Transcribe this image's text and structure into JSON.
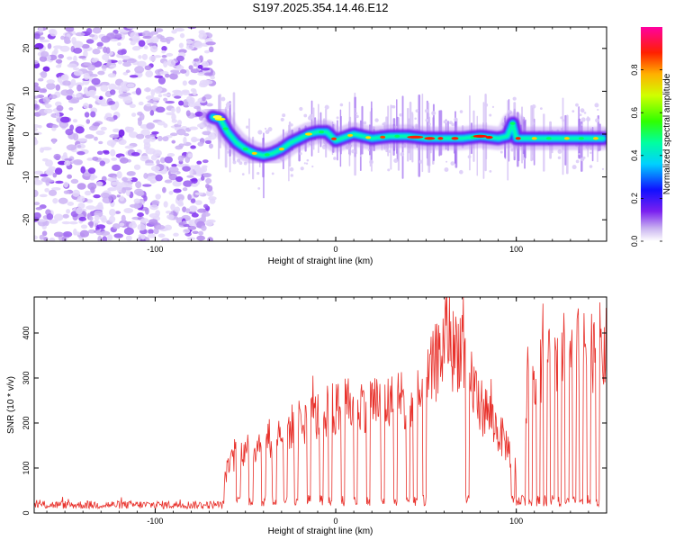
{
  "title": "S197.2025.354.14.46.E12",
  "colors": {
    "snr_line": "#e8302a",
    "background": "#ffffff",
    "axis": "#000000"
  },
  "chart_data": [
    {
      "type": "heatmap",
      "name": "spectrogram",
      "xlabel": "Height of straight line (km)",
      "ylabel": "Frequency (Hz)",
      "xlim": [
        -167,
        150
      ],
      "ylim": [
        -25,
        25
      ],
      "xticks": [
        -100,
        0,
        100
      ],
      "xtick_labels": [
        "-100",
        "0",
        "100"
      ],
      "yticks": [
        -20,
        -10,
        0,
        10,
        20
      ],
      "ytick_labels": [
        "-20",
        "-10",
        "0",
        "10",
        "20"
      ],
      "noise_region_x": [
        -167,
        -68
      ],
      "ridge": {
        "x": [
          -68,
          -64,
          -60,
          -55,
          -50,
          -45,
          -40,
          -35,
          -30,
          -25,
          -20,
          -15,
          -10,
          -5,
          0,
          10,
          20,
          30,
          40,
          50,
          60,
          70,
          80,
          90,
          95,
          98,
          100,
          110,
          120,
          130,
          140,
          148
        ],
        "freq": [
          4,
          3.5,
          0.5,
          -2,
          -3.5,
          -4.5,
          -5,
          -4.5,
          -3.5,
          -2,
          -1,
          0,
          0.5,
          0.5,
          -1.5,
          0,
          -1,
          -0.5,
          -0.5,
          -1,
          -1,
          -1,
          -0.5,
          -1,
          -0.5,
          2.5,
          -1,
          -1,
          -1,
          -1,
          -1,
          -1
        ]
      },
      "colorbar": {
        "label": "Normalized spectral amplitude",
        "range": [
          0,
          1
        ],
        "ticks": [
          0.0,
          0.2,
          0.4,
          0.6,
          0.8
        ],
        "tick_labels": [
          "0.0",
          "0.2",
          "0.4",
          "0.6",
          "0.8"
        ]
      }
    },
    {
      "type": "line",
      "name": "snr",
      "xlabel": "Height of straight line (km)",
      "ylabel": "SNR (10 * v/v)",
      "xlim": [
        -167,
        150
      ],
      "ylim": [
        0,
        480
      ],
      "xticks": [
        -100,
        0,
        100
      ],
      "xtick_labels": [
        "-100",
        "0",
        "100"
      ],
      "yticks": [
        0,
        100,
        200,
        300,
        400
      ],
      "ytick_labels": [
        "0",
        "100",
        "200",
        "300",
        "400"
      ],
      "series": [
        {
          "name": "SNR",
          "x": [
            -167,
            -120,
            -70,
            -62,
            -58,
            -55,
            -50,
            -45,
            -40,
            -35,
            -30,
            -25,
            -20,
            -15,
            -10,
            -5,
            0,
            5,
            10,
            15,
            20,
            25,
            30,
            35,
            40,
            45,
            50,
            55,
            60,
            62,
            65,
            70,
            72,
            75,
            80,
            85,
            90,
            95,
            100,
            103,
            105,
            110,
            115,
            120,
            125,
            130,
            135,
            140,
            145,
            150
          ],
          "baseline": [
            18,
            18,
            20,
            80,
            110,
            130,
            140,
            150,
            160,
            170,
            180,
            190,
            200,
            205,
            215,
            225,
            230,
            235,
            240,
            245,
            250,
            240,
            245,
            240,
            230,
            240,
            280,
            330,
            370,
            420,
            360,
            380,
            330,
            300,
            240,
            220,
            180,
            150,
            100,
            170,
            260,
            320,
            330,
            340,
            350,
            355,
            360,
            365,
            370,
            360
          ],
          "dropouts_x": [
            -54,
            -47,
            -40,
            -34,
            -28,
            -22,
            -15,
            -8,
            -3,
            4,
            11,
            18,
            26,
            33,
            40,
            44,
            49,
            73,
            98,
            104,
            108,
            112,
            116,
            120,
            124,
            128,
            132,
            136,
            140,
            145
          ]
        }
      ]
    }
  ]
}
